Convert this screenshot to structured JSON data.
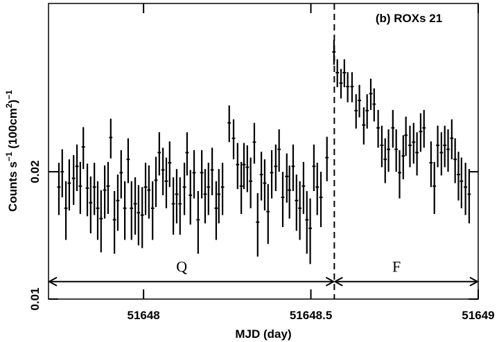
{
  "chart_data": {
    "type": "errorbar",
    "annotation": "(b) ROXs 21",
    "xlabel": "MJD (day)",
    "ylabel": [
      "Counts s",
      "−1",
      " (100cm",
      "2",
      ")",
      "−1"
    ],
    "xlim": [
      51647.716,
      51649
    ],
    "ylim": [
      0.01,
      0.05
    ],
    "ylog": true,
    "xticks": [
      51648,
      51648.5,
      51649
    ],
    "yticks": [
      0.01,
      0.02
    ],
    "color": "#000000",
    "xerr": 0.005,
    "yerr": 0.0026,
    "vline": 51648.57,
    "segments": [
      {
        "label": "Q",
        "start": 51647.716,
        "end": 51648.57,
        "y": 0.011
      },
      {
        "label": "F",
        "start": 51648.57,
        "end": 51649,
        "y": 0.011
      }
    ],
    "x": [
      51647.747,
      51647.757,
      51647.768,
      51647.778,
      51647.791,
      51647.801,
      51647.811,
      51647.82,
      51647.832,
      51647.842,
      51647.853,
      51647.863,
      51647.873,
      51647.884,
      51647.894,
      51647.902,
      51647.913,
      51647.923,
      51647.933,
      51647.944,
      51647.954,
      51647.964,
      51647.975,
      51647.985,
      51647.996,
      51648.006,
      51648.016,
      51648.027,
      51648.037,
      51648.047,
      51648.058,
      51648.068,
      51648.078,
      51648.089,
      51648.099,
      51648.109,
      51648.122,
      51648.13,
      51648.14,
      51648.151,
      51648.163,
      51648.174,
      51648.184,
      51648.194,
      51648.205,
      51648.217,
      51648.225,
      51648.236,
      51648.256,
      51648.269,
      51648.281,
      51648.292,
      51648.3,
      51648.31,
      51648.32,
      51648.331,
      51648.341,
      51648.352,
      51648.362,
      51648.372,
      51648.383,
      51648.395,
      51648.405,
      51648.416,
      51648.428,
      51648.436,
      51648.447,
      51648.457,
      51648.467,
      51648.478,
      51648.488,
      51648.498,
      51648.509,
      51648.519,
      51648.53,
      51648.548,
      51648.569,
      51648.579,
      51648.59,
      51648.6,
      51648.61,
      51648.623,
      51648.635,
      51648.645,
      51648.658,
      51648.668,
      51648.679,
      51648.689,
      51648.701,
      51648.712,
      51648.722,
      51648.732,
      51648.745,
      51648.755,
      51648.765,
      51648.776,
      51648.784,
      51648.796,
      51648.807,
      51648.817,
      51648.828,
      51648.838,
      51648.859,
      51648.869,
      51648.879,
      51648.89,
      51648.9,
      51648.91,
      51648.921,
      51648.931,
      51648.941,
      51648.95,
      51648.962,
      51648.973
    ],
    "values": [
      0.0184,
      0.02,
      0.0164,
      0.0188,
      0.0193,
      0.0206,
      0.0185,
      0.0229,
      0.0183,
      0.0169,
      0.0184,
      0.0164,
      0.0155,
      0.0181,
      0.0185,
      0.0241,
      0.0154,
      0.0171,
      0.0199,
      0.0164,
      0.0214,
      0.0164,
      0.0168,
      0.016,
      0.0158,
      0.0184,
      0.0181,
      0.0164,
      0.0191,
      0.0222,
      0.0202,
      0.019,
      0.021,
      0.0168,
      0.0177,
      0.0168,
      0.0184,
      0.0222,
      0.0176,
      0.0199,
      0.0154,
      0.0199,
      0.0177,
      0.0184,
      0.0202,
      0.0164,
      0.0177,
      0.0184,
      0.0261,
      0.024,
      0.0208,
      0.0185,
      0.0208,
      0.0205,
      0.019,
      0.0235,
      0.0152,
      0.0197,
      0.0188,
      0.0161,
      0.0199,
      0.0206,
      0.0226,
      0.0174,
      0.0195,
      0.0181,
      0.0206,
      0.0171,
      0.0164,
      0.0185,
      0.0154,
      0.0147,
      0.0206,
      0.0184,
      0.0174,
      0.0216,
      0.0384,
      0.0343,
      0.0324,
      0.0343,
      0.0318,
      0.0318,
      0.0279,
      0.0295,
      0.0258,
      0.0279,
      0.0306,
      0.0289,
      0.0254,
      0.0231,
      0.0214,
      0.0226,
      0.0254,
      0.0226,
      0.0199,
      0.0218,
      0.0244,
      0.0231,
      0.0235,
      0.0222,
      0.0249,
      0.0254,
      0.021,
      0.0185,
      0.0231,
      0.0222,
      0.0231,
      0.0226,
      0.024,
      0.0214,
      0.0197,
      0.019,
      0.0184,
      0.0177
    ]
  }
}
